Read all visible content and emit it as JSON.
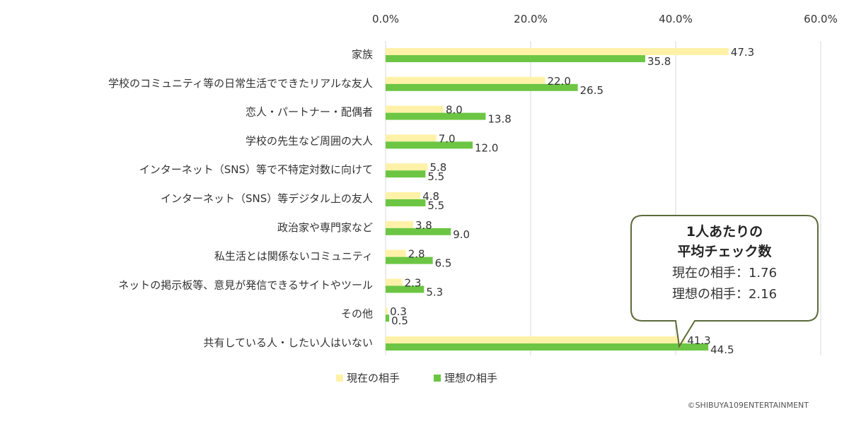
{
  "chart_data": {
    "type": "bar",
    "orientation": "horizontal",
    "categories": [
      "家族",
      "学校のコミュニティ等の日常生活でできたリアルな友人",
      "恋人・パートナー・配偶者",
      "学校の先生など周囲の大人",
      "インターネット（SNS）等で不特定対数に向けて",
      "インターネット（SNS）等デジタル上の友人",
      "政治家や専門家など",
      "私生活とは関係ないコミュニティ",
      "ネットの掲示板等、意見が発信できるサイトやツール",
      "その他",
      "共有している人・したい人はいない"
    ],
    "series": [
      {
        "name": "現在の相手",
        "color": "#FFF2A8",
        "values": [
          47.3,
          22.0,
          8.0,
          7.0,
          5.8,
          4.8,
          3.8,
          2.8,
          2.3,
          0.3,
          41.3
        ]
      },
      {
        "name": "理想の相手",
        "color": "#6CC644",
        "values": [
          35.8,
          26.5,
          13.8,
          12.0,
          5.5,
          5.5,
          9.0,
          6.5,
          5.3,
          0.5,
          44.5
        ]
      }
    ],
    "xlim": [
      0,
      60
    ],
    "xticks": [
      "0.0%",
      "20.0%",
      "40.0%",
      "60.0%"
    ],
    "xtick_values": [
      0,
      20,
      40,
      60
    ],
    "value_format_decimals": 1,
    "grid": true,
    "legend_position": "bottom"
  },
  "callout": {
    "title_line1": "1人あたりの",
    "title_line2": "平均チェック数",
    "line1": "現在の相手：1.76",
    "line2": "理想の相手：2.16"
  },
  "copyright": "©SHIBUYA109ENTERTAINMENT",
  "colors": {
    "grid": "#D9D9D9",
    "callout_border": "#5B6B3A"
  }
}
